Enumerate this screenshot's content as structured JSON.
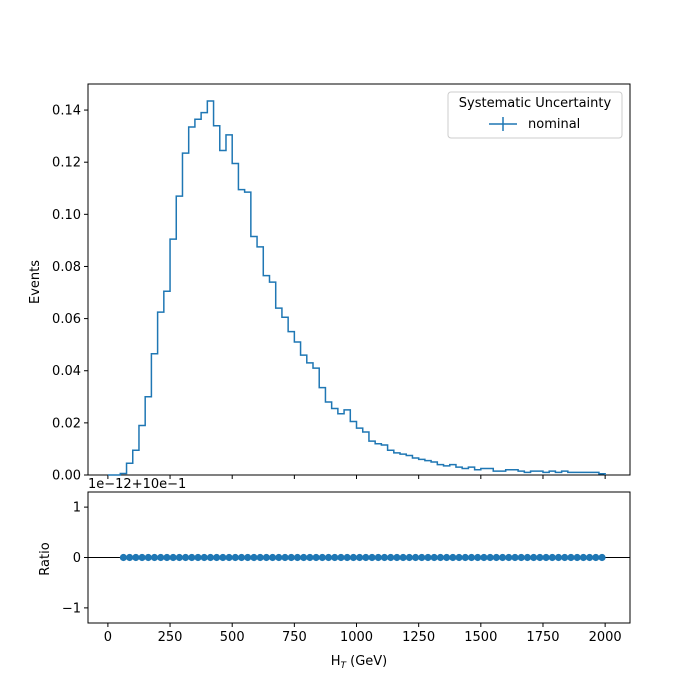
{
  "chart_data": [
    {
      "type": "line",
      "step": true,
      "xlim": [
        -80,
        2100
      ],
      "ylim": [
        0,
        0.15
      ],
      "ylabel": "Events",
      "xticks": [
        0,
        250,
        500,
        750,
        1000,
        1250,
        1500,
        1750,
        2000
      ],
      "yticks": [
        0.0,
        0.02,
        0.04,
        0.06,
        0.08,
        0.1,
        0.12,
        0.14
      ],
      "ytick_labels": [
        "0.00",
        "0.02",
        "0.04",
        "0.06",
        "0.08",
        "0.10",
        "0.12",
        "0.14"
      ],
      "grid": false,
      "legend": {
        "title": "Systematic Uncertainty",
        "position": "upper-right",
        "entries": [
          "nominal"
        ]
      },
      "series": [
        {
          "name": "nominal",
          "color": "#1f77b4",
          "bin_edges": [
            0,
            25,
            50,
            75,
            100,
            125,
            150,
            175,
            200,
            225,
            250,
            275,
            300,
            325,
            350,
            375,
            400,
            425,
            450,
            475,
            500,
            525,
            550,
            575,
            600,
            625,
            650,
            675,
            700,
            725,
            750,
            775,
            800,
            825,
            850,
            875,
            900,
            925,
            950,
            975,
            1000,
            1025,
            1050,
            1075,
            1100,
            1125,
            1150,
            1175,
            1200,
            1225,
            1250,
            1275,
            1300,
            1325,
            1350,
            1375,
            1400,
            1425,
            1450,
            1475,
            1500,
            1525,
            1550,
            1575,
            1600,
            1625,
            1650,
            1675,
            1700,
            1725,
            1750,
            1775,
            1800,
            1825,
            1850,
            1875,
            1900,
            1925,
            1950,
            1975,
            2000
          ],
          "values": [
            0.0,
            0.0,
            0.0006,
            0.0045,
            0.0095,
            0.019,
            0.03,
            0.0465,
            0.0625,
            0.0705,
            0.0905,
            0.107,
            0.1235,
            0.1335,
            0.1365,
            0.139,
            0.1435,
            0.134,
            0.1245,
            0.1305,
            0.1195,
            0.1095,
            0.1085,
            0.0915,
            0.0875,
            0.0765,
            0.074,
            0.064,
            0.0605,
            0.055,
            0.051,
            0.046,
            0.043,
            0.041,
            0.0335,
            0.028,
            0.0255,
            0.0235,
            0.025,
            0.0205,
            0.018,
            0.0165,
            0.013,
            0.012,
            0.0115,
            0.0095,
            0.0085,
            0.008,
            0.0075,
            0.0065,
            0.006,
            0.0055,
            0.005,
            0.004,
            0.0035,
            0.004,
            0.003,
            0.0025,
            0.003,
            0.002,
            0.0025,
            0.0025,
            0.0015,
            0.0015,
            0.002,
            0.002,
            0.0015,
            0.001,
            0.0015,
            0.0015,
            0.001,
            0.0015,
            0.001,
            0.0015,
            0.001,
            0.001,
            0.001,
            0.001,
            0.001,
            0.0005
          ]
        }
      ]
    },
    {
      "type": "scatter",
      "xlim": [
        -80,
        2100
      ],
      "ylim": [
        -1.3,
        1.3
      ],
      "ylabel": "Ratio",
      "xlabel_main": "H",
      "xlabel_sub": "T",
      "xlabel_rest": " (GeV)",
      "offset_text": "1e−12+10e−1",
      "xticks": [
        0,
        250,
        500,
        750,
        1000,
        1250,
        1500,
        1750,
        2000
      ],
      "xtick_labels": [
        "0",
        "250",
        "500",
        "750",
        "1000",
        "1250",
        "1500",
        "1750",
        "2000"
      ],
      "yticks": [
        -1,
        0,
        1
      ],
      "ytick_labels": [
        "−1",
        "0",
        "1"
      ],
      "reference_line": 0,
      "series": [
        {
          "color": "#1f77b4",
          "x": [
            62.5,
            87.5,
            112.5,
            137.5,
            162.5,
            187.5,
            212.5,
            237.5,
            262.5,
            287.5,
            312.5,
            337.5,
            362.5,
            387.5,
            412.5,
            437.5,
            462.5,
            487.5,
            512.5,
            537.5,
            562.5,
            587.5,
            612.5,
            637.5,
            662.5,
            687.5,
            712.5,
            737.5,
            762.5,
            787.5,
            812.5,
            837.5,
            862.5,
            887.5,
            912.5,
            937.5,
            962.5,
            987.5,
            1012.5,
            1037.5,
            1062.5,
            1087.5,
            1112.5,
            1137.5,
            1162.5,
            1187.5,
            1212.5,
            1237.5,
            1262.5,
            1287.5,
            1312.5,
            1337.5,
            1362.5,
            1387.5,
            1412.5,
            1437.5,
            1462.5,
            1487.5,
            1512.5,
            1537.5,
            1562.5,
            1587.5,
            1612.5,
            1637.5,
            1662.5,
            1687.5,
            1712.5,
            1737.5,
            1762.5,
            1787.5,
            1812.5,
            1837.5,
            1862.5,
            1887.5,
            1912.5,
            1937.5,
            1962.5,
            1987.5
          ],
          "y": 0
        }
      ]
    }
  ]
}
